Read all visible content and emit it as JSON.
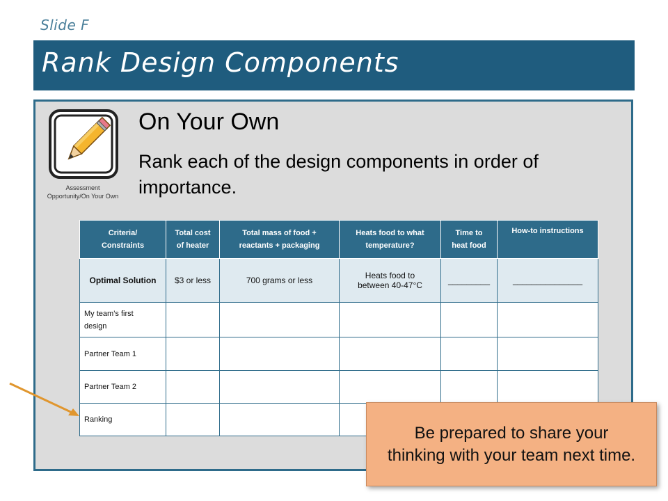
{
  "slide_label": "Slide F",
  "title": "Rank Design Components",
  "icon": {
    "name": "pencil-icon",
    "caption_line1": "Assessment",
    "caption_line2": "Opportunity/On Your Own"
  },
  "heading": "On Your Own",
  "instruction": "Rank each of the design components in order of importance.",
  "table": {
    "headers": [
      {
        "line1": "Criteria/",
        "line2": "Constraints"
      },
      {
        "line1": "Total cost",
        "line2": "of heater"
      },
      {
        "line1": "Total mass of food +",
        "line2": "reactants + packaging"
      },
      {
        "line1": "Heats food to what",
        "line2": "temperature?"
      },
      {
        "line1": "Time to",
        "line2": "heat food"
      },
      {
        "line1": "How-to instructions",
        "line2": ""
      }
    ],
    "optimal_row": {
      "label": "Optimal Solution",
      "cost": "$3 or less",
      "mass": "700 grams or less",
      "temp_line1": "Heats food to",
      "temp_line2": "between 40-47°C",
      "time": "_________",
      "instructions": "_______________"
    },
    "rows": [
      {
        "label_line1": "My team’s first",
        "label_line2": "design"
      },
      {
        "label_line1": "Partner Team 1",
        "label_line2": ""
      },
      {
        "label_line1": "Partner Team 2",
        "label_line2": ""
      },
      {
        "label_line1": "Ranking",
        "label_line2": ""
      }
    ]
  },
  "callout": "Be prepared to share your thinking with your team next time.",
  "colors": {
    "title_bar": "#1f5c7e",
    "table_header": "#2e6b8a",
    "callout": "#f4b183",
    "arrow": "#e0962e"
  }
}
